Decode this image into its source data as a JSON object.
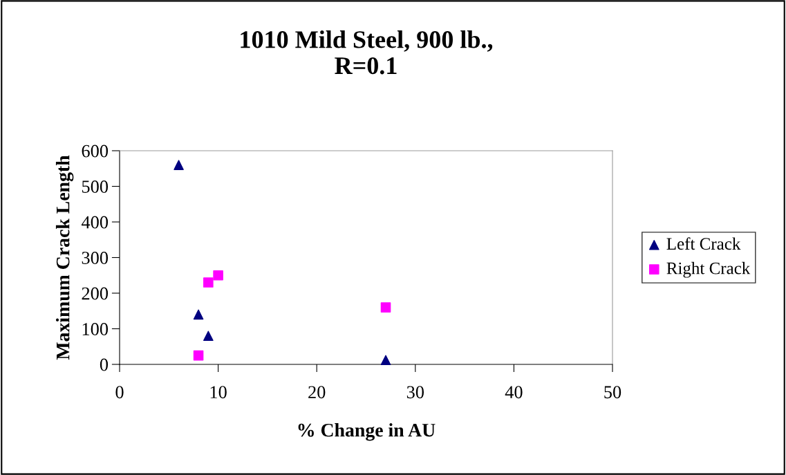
{
  "chart_data": {
    "type": "scatter",
    "title": "1010 Mild Steel, 900 lb.,\nR=0.1",
    "xlabel": "% Change in AU",
    "ylabel": "Maximum Crack Length",
    "xlim": [
      0,
      50
    ],
    "xticks": [
      0,
      10,
      20,
      30,
      40,
      50
    ],
    "ylim": [
      0,
      600
    ],
    "yticks": [
      0,
      100,
      200,
      300,
      400,
      500,
      600
    ],
    "grid": false,
    "legend": "right",
    "series": [
      {
        "name": "Left Crack",
        "color": "#000080",
        "marker": "triangle",
        "x": [
          6,
          8,
          9,
          27
        ],
        "values": [
          560,
          140,
          80,
          12
        ]
      },
      {
        "name": "Right Crack",
        "color": "#ff00ff",
        "marker": "square",
        "x": [
          8,
          9,
          10,
          27
        ],
        "values": [
          25,
          230,
          250,
          160
        ]
      }
    ]
  }
}
